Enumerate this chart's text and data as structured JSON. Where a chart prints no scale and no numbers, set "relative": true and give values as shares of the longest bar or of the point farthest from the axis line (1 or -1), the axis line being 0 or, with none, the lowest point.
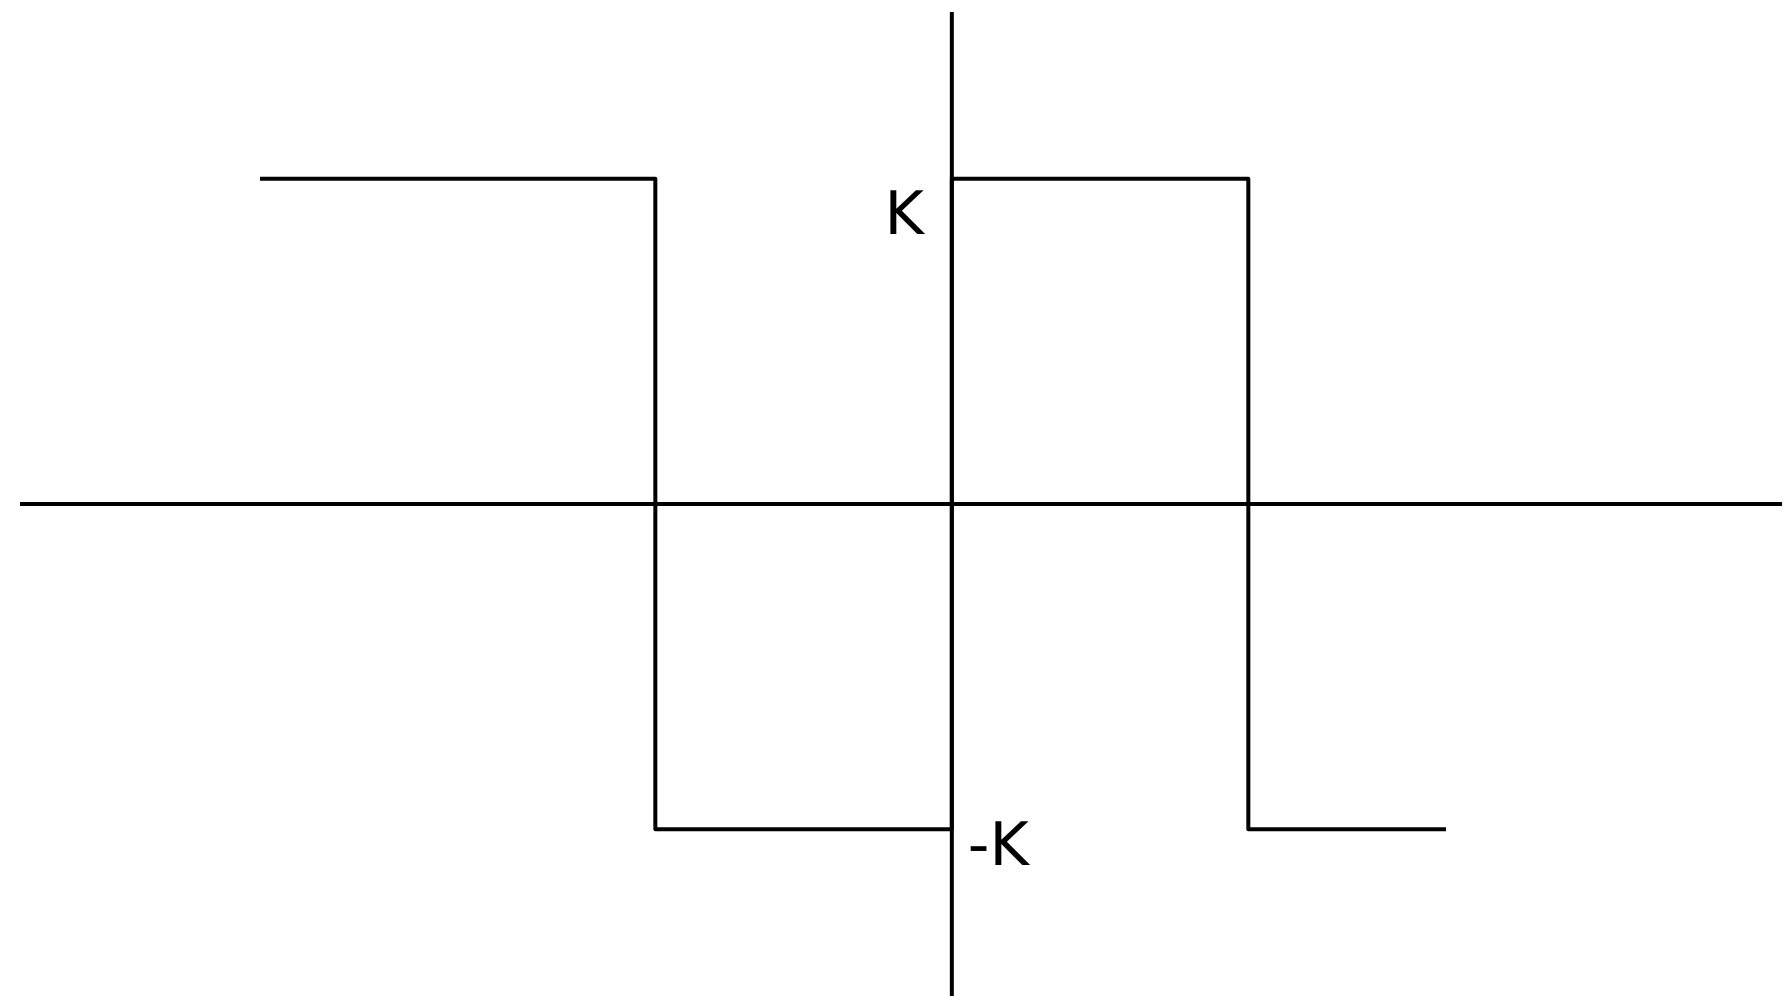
{
  "chart_data": {
    "type": "step",
    "relative": true,
    "categories": [
      null,
      null,
      null,
      null,
      null,
      null,
      null,
      null,
      null,
      null,
      null,
      null,
      null
    ],
    "series": [
      {
        "color": "#000000",
        "values": [
          1,
          1,
          1,
          1,
          -1,
          -1,
          -1,
          1,
          1,
          1,
          -1,
          -1,
          -1
        ]
      }
    ],
    "annotations": [
      "K",
      "-K"
    ],
    "marker": "none"
  }
}
